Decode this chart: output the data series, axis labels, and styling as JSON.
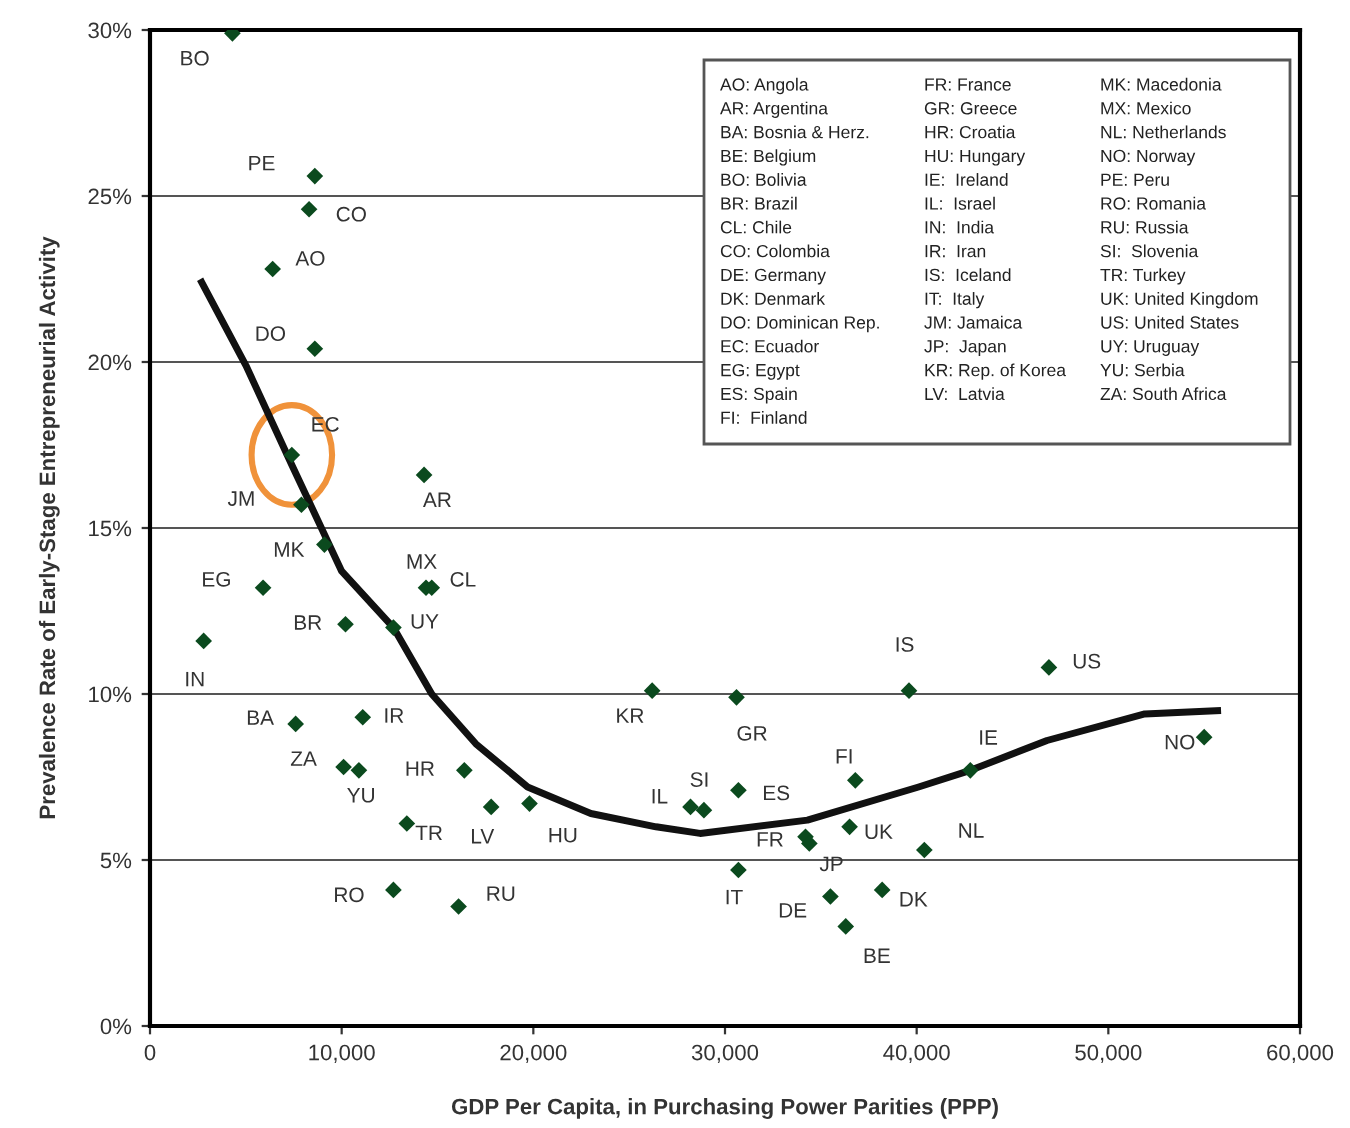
{
  "chart_data": {
    "type": "scatter",
    "xlabel": "GDP Per Capita, in Purchasing Power Parities (PPP)",
    "ylabel": "Prevalence Rate of Early-Stage Entrepreneurial Activity",
    "xlim": [
      0,
      60000
    ],
    "ylim": [
      0,
      30
    ],
    "xticks": [
      0,
      {
        "value": 10000,
        "label": "10,000"
      },
      {
        "value": 20000,
        "label": "20,000"
      },
      {
        "value": 30000,
        "label": "30,000"
      },
      {
        "value": 40000,
        "label": "40,000"
      },
      {
        "value": 50000,
        "label": "50,000"
      },
      {
        "value": 60000,
        "label": "60,000"
      }
    ],
    "yticks": [
      {
        "value": 0,
        "label": "0%"
      },
      {
        "value": 5,
        "label": "5%"
      },
      {
        "value": 10,
        "label": "10%"
      },
      {
        "value": 15,
        "label": "15%"
      },
      {
        "value": 20,
        "label": "20%"
      },
      {
        "value": 25,
        "label": "25%"
      },
      {
        "value": 30,
        "label": "30%"
      }
    ],
    "grid": "y",
    "marker": "diamond",
    "legend": false,
    "annotations": [
      "AO: Angola",
      "AR: Argentina",
      "BA: Bosnia & Herz.",
      "BE: Belgium",
      "BO: Bolivia",
      "BR: Brazil",
      "CL: Chile",
      "CO: Colombia",
      "DE: Germany",
      "DK: Denmark",
      "DO: Dominican Rep.",
      "EC: Ecuador",
      "EG: Egypt",
      "ES: Spain",
      "FI:  Finland",
      "FR: France",
      "GR: Greece",
      "HR: Croatia",
      "HU: Hungary",
      "IE:  Ireland",
      "IL:  Israel",
      "IN:  India",
      "IR:  Iran",
      "IS:  Iceland",
      "IT:  Italy",
      "JM: Jamaica",
      "JP:  Japan",
      "KR: Rep. of Korea",
      "LV:  Latvia",
      "MK: Macedonia",
      "MX: Mexico",
      "NL: Netherlands",
      "NO: Norway",
      "PE: Peru",
      "RO: Romania",
      "RU: Russia",
      "SI:  Slovenia",
      "TR: Turkey",
      "UK: United Kingdom",
      "US: United States",
      "UY: Uruguay",
      "YU: Serbia",
      "ZA: South Africa"
    ],
    "series": [
      {
        "name": "BO",
        "color": "#0b4a1e",
        "x": [
          4300
        ],
        "values": [
          29.9
        ]
      },
      {
        "name": "PE",
        "color": "#0b4a1e",
        "x": [
          8600
        ],
        "values": [
          25.6
        ]
      },
      {
        "name": "CO",
        "color": "#0b4a1e",
        "x": [
          8300
        ],
        "values": [
          24.6
        ]
      },
      {
        "name": "AO",
        "color": "#0b4a1e",
        "x": [
          6400
        ],
        "values": [
          22.8
        ]
      },
      {
        "name": "DO",
        "color": "#0b4a1e",
        "x": [
          8600
        ],
        "values": [
          20.4
        ]
      },
      {
        "name": "EC",
        "color": "#0b4a1e",
        "x": [
          7400
        ],
        "values": [
          17.2
        ]
      },
      {
        "name": "AR",
        "color": "#0b4a1e",
        "x": [
          14300
        ],
        "values": [
          16.6
        ]
      },
      {
        "name": "JM",
        "color": "#0b4a1e",
        "x": [
          7900
        ],
        "values": [
          15.7
        ]
      },
      {
        "name": "MK",
        "color": "#0b4a1e",
        "x": [
          9100
        ],
        "values": [
          14.5
        ]
      },
      {
        "name": "EG",
        "color": "#0b4a1e",
        "x": [
          5900
        ],
        "values": [
          13.2
        ]
      },
      {
        "name": "MX",
        "color": "#0b4a1e",
        "x": [
          14400
        ],
        "values": [
          13.2
        ]
      },
      {
        "name": "CL",
        "color": "#0b4a1e",
        "x": [
          14700
        ],
        "values": [
          13.2
        ]
      },
      {
        "name": "BR",
        "color": "#0b4a1e",
        "x": [
          10200
        ],
        "values": [
          12.1
        ]
      },
      {
        "name": "UY",
        "color": "#0b4a1e",
        "x": [
          12700
        ],
        "values": [
          12.0
        ]
      },
      {
        "name": "IN",
        "color": "#0b4a1e",
        "x": [
          2800
        ],
        "values": [
          11.6
        ]
      },
      {
        "name": "BA",
        "color": "#0b4a1e",
        "x": [
          7600
        ],
        "values": [
          9.1
        ]
      },
      {
        "name": "IR",
        "color": "#0b4a1e",
        "x": [
          11100
        ],
        "values": [
          9.3
        ]
      },
      {
        "name": "ZA",
        "color": "#0b4a1e",
        "x": [
          10100
        ],
        "values": [
          7.8
        ]
      },
      {
        "name": "YU",
        "color": "#0b4a1e",
        "x": [
          10900
        ],
        "values": [
          7.7
        ]
      },
      {
        "name": "HR",
        "color": "#0b4a1e",
        "x": [
          16400
        ],
        "values": [
          7.7
        ]
      },
      {
        "name": "LV",
        "color": "#0b4a1e",
        "x": [
          17800
        ],
        "values": [
          6.6
        ]
      },
      {
        "name": "HU",
        "color": "#0b4a1e",
        "x": [
          19800
        ],
        "values": [
          6.7
        ]
      },
      {
        "name": "TR",
        "color": "#0b4a1e",
        "x": [
          13400
        ],
        "values": [
          6.1
        ]
      },
      {
        "name": "RO",
        "color": "#0b4a1e",
        "x": [
          12700
        ],
        "values": [
          4.1
        ]
      },
      {
        "name": "RU",
        "color": "#0b4a1e",
        "x": [
          16100
        ],
        "values": [
          3.6
        ]
      },
      {
        "name": "KR",
        "color": "#0b4a1e",
        "x": [
          26200
        ],
        "values": [
          10.1
        ]
      },
      {
        "name": "GR",
        "color": "#0b4a1e",
        "x": [
          30600
        ],
        "values": [
          9.9
        ]
      },
      {
        "name": "IS",
        "color": "#0b4a1e",
        "x": [
          39600
        ],
        "values": [
          10.1
        ]
      },
      {
        "name": "US",
        "color": "#0b4a1e",
        "x": [
          46900
        ],
        "values": [
          10.8
        ]
      },
      {
        "name": "NO",
        "color": "#0b4a1e",
        "x": [
          55000
        ],
        "values": [
          8.7
        ]
      },
      {
        "name": "IE",
        "color": "#0b4a1e",
        "x": [
          42800
        ],
        "values": [
          7.7
        ]
      },
      {
        "name": "FI",
        "color": "#0b4a1e",
        "x": [
          36800
        ],
        "values": [
          7.4
        ]
      },
      {
        "name": "IL",
        "color": "#0b4a1e",
        "x": [
          28200
        ],
        "values": [
          6.6
        ]
      },
      {
        "name": "SI",
        "color": "#0b4a1e",
        "x": [
          28900
        ],
        "values": [
          6.5
        ]
      },
      {
        "name": "ES",
        "color": "#0b4a1e",
        "x": [
          30700
        ],
        "values": [
          7.1
        ]
      },
      {
        "name": "UK",
        "color": "#0b4a1e",
        "x": [
          36500
        ],
        "values": [
          6.0
        ]
      },
      {
        "name": "FR",
        "color": "#0b4a1e",
        "x": [
          34200
        ],
        "values": [
          5.7
        ]
      },
      {
        "name": "JP",
        "color": "#0b4a1e",
        "x": [
          34400
        ],
        "values": [
          5.5
        ]
      },
      {
        "name": "NL",
        "color": "#0b4a1e",
        "x": [
          40400
        ],
        "values": [
          5.3
        ]
      },
      {
        "name": "IT",
        "color": "#0b4a1e",
        "x": [
          30700
        ],
        "values": [
          4.7
        ]
      },
      {
        "name": "DK",
        "color": "#0b4a1e",
        "x": [
          38200
        ],
        "values": [
          4.1
        ]
      },
      {
        "name": "DE",
        "color": "#0b4a1e",
        "x": [
          35500
        ],
        "values": [
          3.9
        ]
      },
      {
        "name": "BE",
        "color": "#0b4a1e",
        "x": [
          36300
        ],
        "values": [
          3.0
        ]
      },
      {
        "type": "line",
        "color": "#111111",
        "marker": "none",
        "line_style": "solid",
        "x": [
          2700,
          5000,
          7400,
          10000,
          12700,
          14700,
          17000,
          19700,
          23000,
          26400,
          28700,
          34300,
          40100,
          42800,
          46800,
          51900,
          55700
        ],
        "values": [
          22.4,
          19.9,
          16.9,
          13.7,
          12.0,
          10.0,
          8.5,
          7.2,
          6.4,
          6.0,
          5.8,
          6.2,
          7.2,
          7.7,
          8.6,
          9.4,
          9.5
        ]
      }
    ]
  }
}
